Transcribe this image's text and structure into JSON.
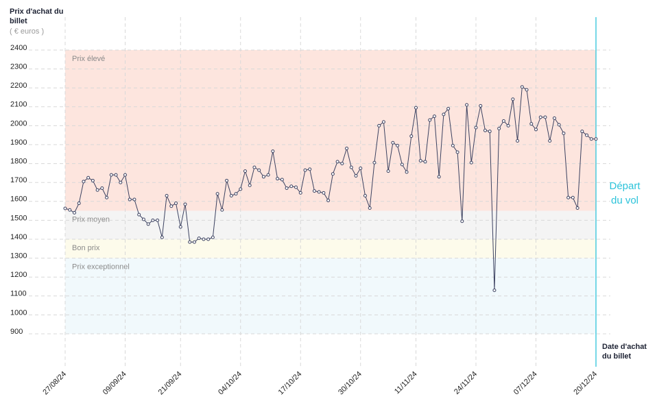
{
  "chart_data": {
    "type": "line",
    "y_axis_title": "Prix d'achat du billet",
    "y_axis_unit": "( € euros )",
    "x_axis_title": "Date d'achat du billet",
    "departure": {
      "label": "Départ du vol",
      "color": "#2cc3da"
    },
    "bands": [
      {
        "label": "Prix élevé",
        "from": 1550,
        "to": 2400,
        "color": "#fde5de"
      },
      {
        "label": "Prix moyen",
        "from": 1400,
        "to": 1550,
        "color": "#f4f4f4"
      },
      {
        "label": "Bon prix",
        "from": 1300,
        "to": 1400,
        "color": "#fdfbeb"
      },
      {
        "label": "Prix exceptionnel",
        "from": 900,
        "to": 1300,
        "color": "#f1f9fc"
      }
    ],
    "categories": [
      "27/08/24",
      null,
      null,
      null,
      null,
      null,
      null,
      null,
      null,
      null,
      null,
      null,
      null,
      "09/09/24",
      null,
      null,
      null,
      null,
      null,
      null,
      null,
      null,
      null,
      null,
      null,
      "21/09/24",
      null,
      null,
      null,
      null,
      null,
      null,
      null,
      null,
      null,
      null,
      null,
      null,
      "04/10/24",
      null,
      null,
      null,
      null,
      null,
      null,
      null,
      null,
      null,
      null,
      null,
      null,
      "17/10/24",
      null,
      null,
      null,
      null,
      null,
      null,
      null,
      null,
      null,
      null,
      null,
      null,
      "30/10/24",
      null,
      null,
      null,
      null,
      null,
      null,
      null,
      null,
      null,
      null,
      null,
      "11/11/24",
      null,
      null,
      null,
      null,
      null,
      null,
      null,
      null,
      null,
      null,
      null,
      null,
      "24/11/24",
      null,
      null,
      null,
      null,
      null,
      null,
      null,
      null,
      null,
      null,
      null,
      null,
      "07/12/24",
      null,
      null,
      null,
      null,
      null,
      null,
      null,
      null,
      null,
      null,
      null,
      null,
      "20/12/24"
    ],
    "values": [
      1563,
      1555,
      1540,
      1590,
      1705,
      1725,
      1710,
      1660,
      1670,
      1620,
      1740,
      1740,
      1700,
      1740,
      1610,
      1610,
      1530,
      1505,
      1480,
      1500,
      1500,
      1410,
      1630,
      1575,
      1590,
      1465,
      1585,
      1385,
      1385,
      1405,
      1400,
      1400,
      1410,
      1640,
      1555,
      1710,
      1630,
      1640,
      1665,
      1760,
      1685,
      1780,
      1765,
      1730,
      1740,
      1865,
      1720,
      1715,
      1670,
      1680,
      1675,
      1645,
      1765,
      1770,
      1655,
      1650,
      1645,
      1605,
      1745,
      1810,
      1800,
      1880,
      1780,
      1735,
      1775,
      1630,
      1565,
      1805,
      2000,
      2020,
      1760,
      1910,
      1895,
      1795,
      1755,
      1945,
      2095,
      1815,
      1810,
      2030,
      2050,
      1730,
      2060,
      2090,
      1895,
      1860,
      1495,
      2110,
      1805,
      1990,
      2105,
      1975,
      1970,
      1130,
      1985,
      2025,
      2000,
      2140,
      1920,
      2205,
      2190,
      2010,
      1980,
      2045,
      2045,
      1920,
      2040,
      2005,
      1960,
      1620,
      1620,
      1565,
      1970,
      1950,
      1930,
      1930
    ],
    "color": "#3b4160",
    "ylim": [
      900,
      2400
    ],
    "yticks": [
      900,
      1000,
      1100,
      1200,
      1300,
      1400,
      1500,
      1600,
      1700,
      1800,
      1900,
      2000,
      2100,
      2200,
      2300,
      2400
    ],
    "grid": true
  }
}
